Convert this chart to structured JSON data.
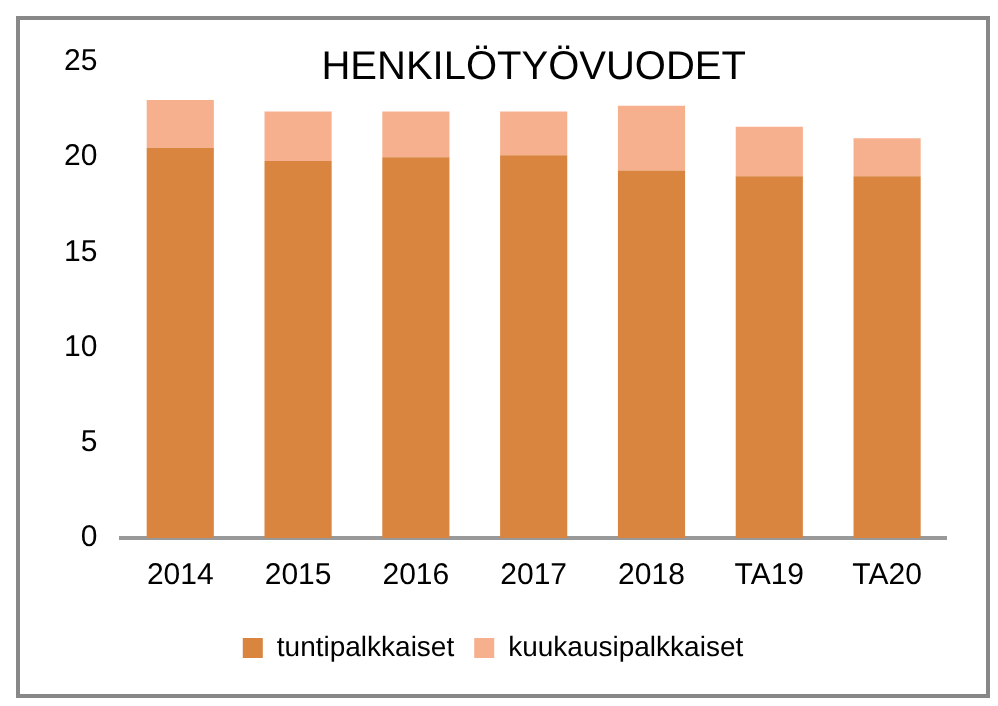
{
  "chart_data": {
    "type": "bar",
    "title": "HENKILÖTYÖVUODET",
    "categories": [
      "2014",
      "2015",
      "2016",
      "2017",
      "2018",
      "TA19",
      "TA20"
    ],
    "series": [
      {
        "name": "tuntipalkkaiset",
        "color": "#d9843f",
        "values": [
          20.5,
          19.8,
          20.0,
          20.1,
          19.3,
          19.0,
          19.0
        ]
      },
      {
        "name": "kuukausipalkkaiset",
        "color": "#f6b08e",
        "values": [
          2.5,
          2.6,
          2.4,
          2.3,
          3.4,
          2.6,
          2.0
        ]
      }
    ],
    "stacked": true,
    "ylim": [
      0,
      25
    ],
    "yticks": [
      0,
      5,
      10,
      15,
      20,
      25
    ],
    "grid": false,
    "legend": "bottom"
  }
}
